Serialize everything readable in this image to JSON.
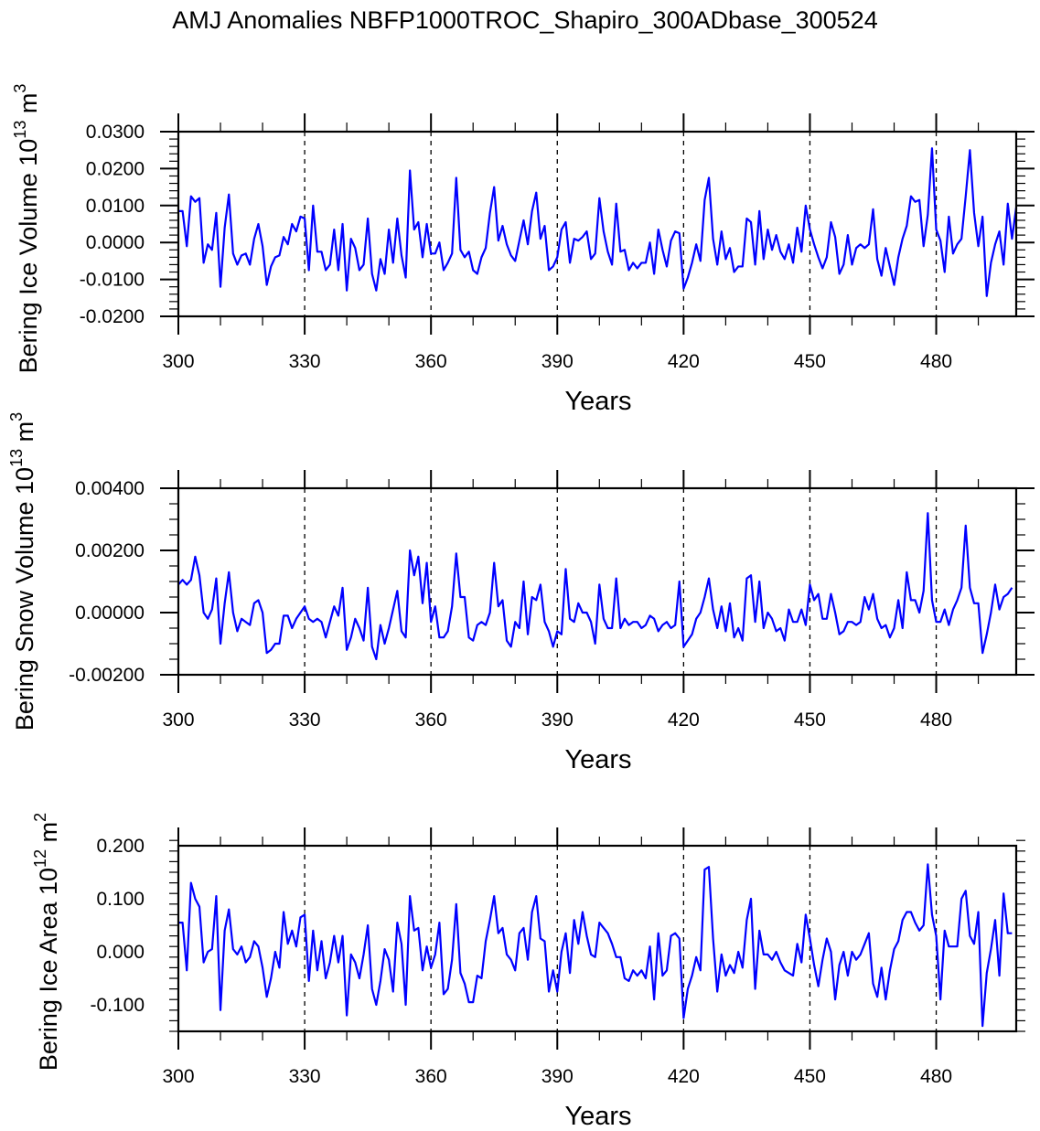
{
  "title": "AMJ Anomalies NBFP1000TROC_Shapiro_300ADbase_300524",
  "chart_data": [
    {
      "type": "line",
      "ylabel": "Bering Ice Volume",
      "yunit_base": "10",
      "yunit_exp": "13",
      "yunit_rest": " m",
      "yunit_rest_exp": "3",
      "xlabel": "Years",
      "xlim": [
        300,
        499
      ],
      "ylim": [
        -0.02,
        0.03
      ],
      "xticks": [
        300,
        330,
        360,
        390,
        420,
        450,
        480
      ],
      "xtick_labels": [
        "300",
        "330",
        "360",
        "390",
        "420",
        "450",
        "480"
      ],
      "yticks": [
        -0.02,
        -0.01,
        0.0,
        0.01,
        0.02,
        0.03
      ],
      "ytick_labels": [
        "-0.0200",
        "-0.0100",
        "0.0000",
        "0.0100",
        "0.0200",
        "0.0300"
      ],
      "yminor_step": 0.002,
      "vlines": [
        330,
        360,
        390,
        420,
        450,
        480
      ],
      "color": "#0000ff",
      "x_start": 300,
      "values": [
        0.0085,
        0.0085,
        -0.001,
        0.0125,
        0.011,
        0.012,
        -0.0055,
        -0.0005,
        -0.002,
        0.008,
        -0.012,
        0.004,
        0.013,
        -0.003,
        -0.006,
        -0.0035,
        -0.003,
        -0.006,
        0.001,
        0.005,
        -0.001,
        -0.0115,
        -0.0065,
        -0.004,
        -0.0035,
        0.0015,
        -0.0005,
        0.005,
        0.003,
        0.007,
        0.0065,
        -0.0075,
        0.01,
        -0.0025,
        -0.0025,
        -0.0075,
        -0.006,
        0.0035,
        -0.0075,
        0.005,
        -0.013,
        0.001,
        -0.0015,
        -0.0075,
        -0.006,
        0.0065,
        -0.0085,
        -0.013,
        -0.0045,
        -0.0085,
        0.0035,
        -0.0055,
        0.0065,
        -0.0035,
        -0.0095,
        0.0195,
        0.0035,
        0.0055,
        -0.004,
        0.005,
        -0.003,
        -0.003,
        0.0,
        -0.0075,
        -0.0055,
        -0.003,
        0.0175,
        -0.002,
        -0.004,
        -0.0025,
        -0.0075,
        -0.0085,
        -0.004,
        -0.0015,
        0.008,
        0.015,
        0.0005,
        0.0045,
        -0.0005,
        -0.0035,
        -0.005,
        0.0005,
        0.006,
        -0.0005,
        0.0085,
        0.0135,
        0.001,
        0.0045,
        -0.0075,
        -0.0065,
        -0.004,
        0.0035,
        0.0055,
        -0.0055,
        0.001,
        0.0005,
        0.0015,
        0.003,
        -0.0045,
        -0.003,
        0.012,
        0.003,
        -0.0025,
        -0.006,
        0.0105,
        -0.0025,
        -0.002,
        -0.0075,
        -0.0055,
        -0.007,
        -0.0055,
        -0.0055,
        0.0,
        -0.0085,
        0.0035,
        -0.002,
        -0.0065,
        0.0005,
        0.003,
        0.0025,
        -0.0125,
        -0.0095,
        -0.0055,
        -0.0005,
        -0.005,
        0.0115,
        0.0175,
        0.001,
        -0.006,
        0.003,
        -0.0045,
        -0.0015,
        -0.008,
        -0.0065,
        -0.0065,
        0.0065,
        0.0055,
        -0.006,
        0.0085,
        -0.0045,
        0.0035,
        -0.002,
        0.002,
        -0.0025,
        -0.0045,
        -0.0005,
        -0.0055,
        0.004,
        -0.0025,
        0.01,
        0.0035,
        -0.0005,
        -0.004,
        -0.007,
        -0.004,
        0.0055,
        0.0015,
        -0.0085,
        -0.006,
        0.002,
        -0.006,
        -0.0015,
        -0.0005,
        -0.0015,
        -0.0005,
        0.009,
        -0.0045,
        -0.009,
        -0.0015,
        -0.0065,
        -0.0115,
        -0.004,
        0.001,
        0.0045,
        0.0125,
        0.011,
        0.0115,
        -0.001,
        0.0075,
        0.0255,
        0.0035,
        0.0005,
        -0.008,
        0.007,
        -0.003,
        -0.0005,
        0.001,
        0.0125,
        0.025,
        0.008,
        -0.001,
        0.007,
        -0.0145,
        -0.0055,
        -0.0005,
        0.003,
        -0.006,
        0.0105,
        0.001,
        0.0095
      ]
    },
    {
      "type": "line",
      "ylabel": "Bering Snow Volume",
      "yunit_base": "10",
      "yunit_exp": "13",
      "yunit_rest": " m",
      "yunit_rest_exp": "3",
      "xlabel": "Years",
      "xlim": [
        300,
        499
      ],
      "ylim": [
        -0.002,
        0.004
      ],
      "xticks": [
        300,
        330,
        360,
        390,
        420,
        450,
        480
      ],
      "xtick_labels": [
        "300",
        "330",
        "360",
        "390",
        "420",
        "450",
        "480"
      ],
      "yticks": [
        -0.002,
        0.0,
        0.002,
        0.004
      ],
      "ytick_labels": [
        "-0.00200",
        "0.00000",
        "0.00200",
        "0.00400"
      ],
      "yminor_step": 0.0005,
      "vlines": [
        330,
        360,
        390,
        420,
        450,
        480
      ],
      "color": "#0000ff",
      "x_start": 300,
      "values": [
        0.0009,
        0.00105,
        0.0009,
        0.00105,
        0.0018,
        0.0012,
        0.0,
        -0.0002,
        0.0001,
        0.0011,
        -0.001,
        0.0003,
        0.0013,
        0.0,
        -0.0006,
        -0.0002,
        -0.0003,
        -0.0004,
        0.0003,
        0.0004,
        0.0,
        -0.0013,
        -0.0012,
        -0.001,
        -0.001,
        -0.0001,
        -0.0001,
        -0.0005,
        -0.0002,
        0.0,
        0.0002,
        -0.0002,
        -0.0003,
        -0.0002,
        -0.0003,
        -0.0008,
        -0.0003,
        0.0002,
        -0.0001,
        0.0008,
        -0.0012,
        -0.0008,
        -0.0002,
        -0.0005,
        -0.0009,
        0.0008,
        -0.0011,
        -0.0015,
        -0.0004,
        -0.001,
        -0.0005,
        0.0001,
        0.0007,
        -0.0006,
        -0.0008,
        0.002,
        0.0012,
        0.0018,
        0.0003,
        0.0016,
        -0.0003,
        0.0002,
        -0.0008,
        -0.0008,
        -0.0006,
        0.0002,
        0.0019,
        0.0005,
        0.0005,
        -0.0008,
        -0.0009,
        -0.0004,
        -0.0003,
        -0.0004,
        0.0,
        0.0016,
        0.0002,
        0.0004,
        -0.0009,
        -0.0011,
        -0.0003,
        -0.0005,
        0.001,
        -0.0007,
        0.0005,
        0.0004,
        0.0009,
        -0.0003,
        -0.0006,
        -0.0011,
        -0.0006,
        -0.0007,
        0.0014,
        -0.0002,
        -0.0003,
        0.0003,
        0.0,
        0.0,
        -0.0003,
        -0.001,
        0.0009,
        -0.0002,
        -0.0005,
        -0.0005,
        0.0011,
        -0.0005,
        -0.0002,
        -0.0004,
        -0.0003,
        -0.0003,
        -0.0005,
        -0.0004,
        -0.0001,
        -0.0002,
        -0.0006,
        -0.0004,
        -0.0003,
        -0.0005,
        -0.0004,
        0.001,
        -0.0011,
        -0.0009,
        -0.0007,
        -0.0002,
        0.0,
        0.0005,
        0.0011,
        0.0001,
        -0.0005,
        0.0002,
        -0.0006,
        0.0003,
        -0.0008,
        -0.0005,
        -0.0009,
        0.0011,
        0.0012,
        -0.0003,
        0.001,
        -0.0005,
        0.0,
        -0.0002,
        -0.0006,
        -0.0005,
        -0.0009,
        0.0001,
        -0.0003,
        -0.0003,
        0.0001,
        -0.0004,
        0.0009,
        0.0004,
        0.0006,
        -0.0002,
        -0.0002,
        0.0006,
        0.0,
        -0.0007,
        -0.0006,
        -0.0003,
        -0.0003,
        -0.0004,
        -0.0003,
        0.0005,
        0.0001,
        0.0006,
        -0.0002,
        -0.0005,
        -0.0004,
        -0.0008,
        -0.0005,
        0.0004,
        -0.0005,
        0.0013,
        0.0004,
        0.0004,
        0.0,
        0.0007,
        0.0032,
        0.0004,
        -0.0003,
        -0.0003,
        0.0001,
        -0.0004,
        0.0001,
        0.0004,
        0.0008,
        0.0028,
        0.0008,
        0.0003,
        0.0003,
        -0.0013,
        -0.0007,
        0.0,
        0.0009,
        0.0001,
        0.0005,
        0.0006,
        0.0008
      ]
    },
    {
      "type": "line",
      "ylabel": "Bering Ice Area",
      "yunit_base": "10",
      "yunit_exp": "12",
      "yunit_rest": " m",
      "yunit_rest_exp": "2",
      "xlabel": "Years",
      "xlim": [
        300,
        499
      ],
      "ylim": [
        -0.15,
        0.2
      ],
      "xticks": [
        300,
        330,
        360,
        390,
        420,
        450,
        480
      ],
      "xtick_labels": [
        "300",
        "330",
        "360",
        "390",
        "420",
        "450",
        "480"
      ],
      "yticks": [
        -0.1,
        0.0,
        0.1,
        0.2
      ],
      "ytick_labels": [
        "-0.100",
        "0.000",
        "0.100",
        "0.200"
      ],
      "yminor_step": 0.02,
      "vlines": [
        330,
        360,
        390,
        420,
        450,
        480
      ],
      "color": "#0000ff",
      "x_start": 300,
      "values": [
        0.055,
        0.055,
        -0.035,
        0.13,
        0.1,
        0.085,
        -0.02,
        0.0,
        0.005,
        0.105,
        -0.11,
        0.04,
        0.08,
        0.005,
        -0.005,
        0.01,
        -0.02,
        -0.01,
        0.02,
        0.01,
        -0.03,
        -0.085,
        -0.05,
        0.0,
        -0.03,
        0.075,
        0.015,
        0.04,
        0.01,
        0.065,
        0.07,
        -0.055,
        0.04,
        -0.035,
        0.02,
        -0.05,
        -0.02,
        0.03,
        -0.02,
        0.03,
        -0.12,
        -0.005,
        -0.02,
        -0.05,
        -0.005,
        0.05,
        -0.07,
        -0.1,
        -0.055,
        0.005,
        -0.015,
        -0.075,
        0.055,
        0.015,
        -0.1,
        0.105,
        0.04,
        0.045,
        -0.035,
        0.01,
        -0.03,
        -0.005,
        0.055,
        -0.08,
        -0.07,
        -0.015,
        0.09,
        -0.04,
        -0.06,
        -0.095,
        -0.095,
        -0.045,
        -0.05,
        0.02,
        0.06,
        0.105,
        0.035,
        0.045,
        -0.005,
        -0.015,
        -0.035,
        0.035,
        0.045,
        -0.015,
        0.075,
        0.105,
        0.025,
        0.02,
        -0.075,
        -0.035,
        -0.075,
        0.0,
        0.035,
        -0.04,
        0.06,
        0.015,
        0.075,
        0.03,
        -0.005,
        -0.01,
        0.055,
        0.045,
        0.035,
        0.015,
        -0.01,
        -0.01,
        -0.05,
        -0.055,
        -0.035,
        -0.045,
        -0.035,
        -0.05,
        0.01,
        -0.09,
        0.035,
        -0.045,
        -0.035,
        0.03,
        0.035,
        0.025,
        -0.125,
        -0.07,
        -0.045,
        -0.01,
        -0.035,
        0.155,
        0.16,
        0.025,
        -0.075,
        -0.005,
        -0.045,
        -0.025,
        -0.04,
        0.0,
        -0.03,
        0.06,
        0.1,
        -0.07,
        0.04,
        -0.005,
        -0.005,
        -0.015,
        0.0,
        -0.02,
        -0.035,
        -0.04,
        -0.045,
        0.015,
        -0.02,
        0.07,
        0.025,
        -0.025,
        -0.065,
        -0.015,
        0.025,
        0.0,
        -0.09,
        -0.025,
        0.0,
        -0.045,
        0.0,
        -0.015,
        -0.005,
        0.015,
        0.035,
        -0.06,
        -0.085,
        -0.03,
        -0.09,
        -0.035,
        0.005,
        0.02,
        0.06,
        0.075,
        0.075,
        0.055,
        0.04,
        0.05,
        0.165,
        0.07,
        0.03,
        -0.09,
        0.04,
        0.01,
        0.01,
        0.01,
        0.1,
        0.115,
        0.03,
        0.015,
        0.075,
        -0.14,
        -0.04,
        0.005,
        0.06,
        -0.045,
        0.11,
        0.035,
        0.035
      ]
    }
  ]
}
